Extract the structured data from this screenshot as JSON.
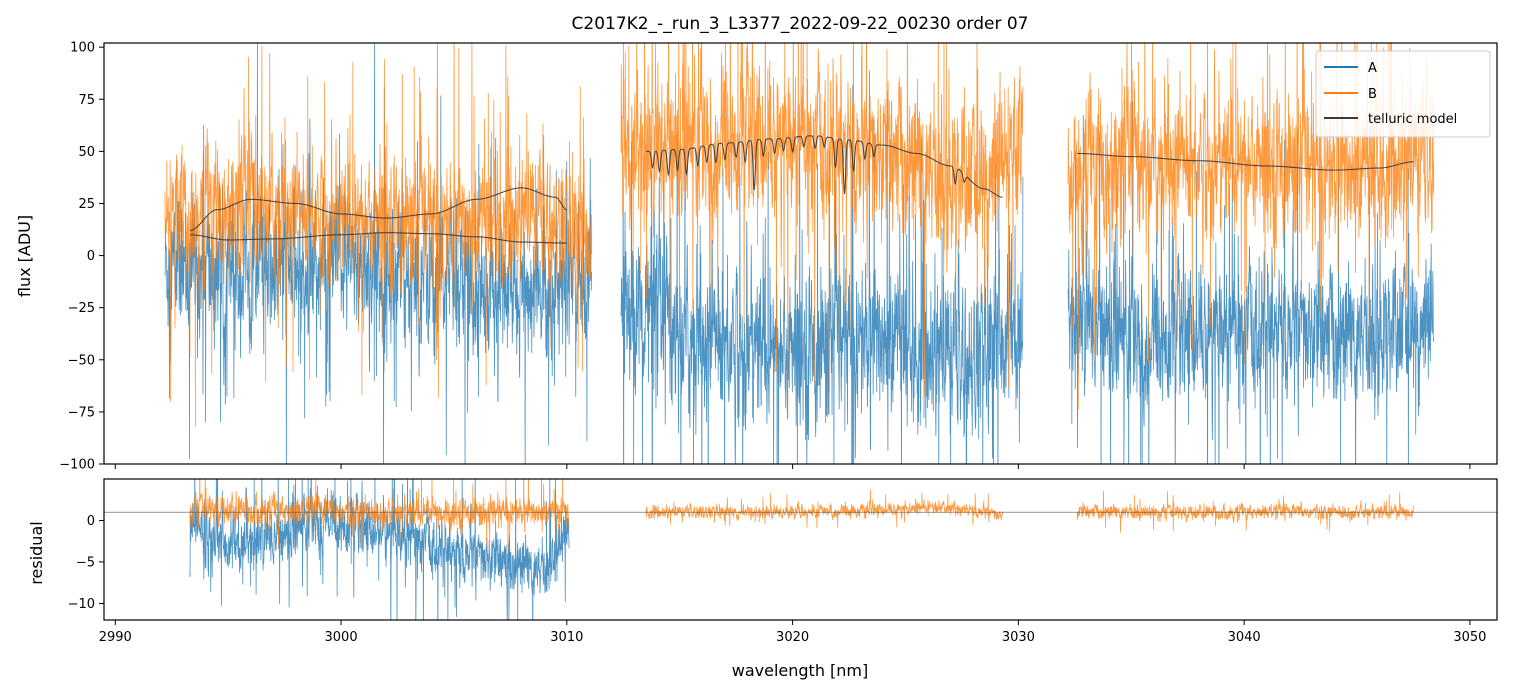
{
  "chart_data": [
    {
      "panel": "main",
      "type": "line",
      "title": "C2017K2_-_run_3_L3377_2022-09-22_00230  order 07",
      "xlabel": "",
      "ylabel": "flux [ADU]",
      "xlim": [
        2989.5,
        3051.2
      ],
      "ylim": [
        -100,
        102
      ],
      "yticks": [
        -100,
        -75,
        -50,
        -25,
        0,
        25,
        50,
        75,
        100
      ],
      "xticks": [
        2990,
        3000,
        3010,
        3020,
        3030,
        3040,
        3050
      ],
      "legend": {
        "placement": "top-right",
        "entries": [
          {
            "label": "A",
            "color": "#1f77b4"
          },
          {
            "label": "B",
            "color": "#ff7f0e"
          },
          {
            "label": "telluric model",
            "color": "#3a3a3a"
          }
        ]
      },
      "series": [
        {
          "name": "A",
          "color": "#1f77b4",
          "segments": [
            {
              "x_range": [
                2992.2,
                3011.1
              ],
              "center": [
                [
                  2992.2,
                  -5
                ],
                [
                  2996,
                  -10
                ],
                [
                  3000,
                  -5
                ],
                [
                  3005,
                  -10
                ],
                [
                  3008,
                  -20
                ],
                [
                  3011.1,
                  -10
                ]
              ],
              "noise": 30
            },
            {
              "x_range": [
                3012.4,
                3030.2
              ],
              "center": [
                [
                  3012.4,
                  -25
                ],
                [
                  3016,
                  -40
                ],
                [
                  3020,
                  -45
                ],
                [
                  3024,
                  -40
                ],
                [
                  3028,
                  -50
                ],
                [
                  3030.2,
                  -35
                ]
              ],
              "noise": 35
            },
            {
              "x_range": [
                3032.2,
                3048.4
              ],
              "center": [
                [
                  3032.2,
                  -30
                ],
                [
                  3036,
                  -40
                ],
                [
                  3040,
                  -35
                ],
                [
                  3044,
                  -40
                ],
                [
                  3048.4,
                  -35
                ]
              ],
              "noise": 30
            }
          ]
        },
        {
          "name": "B",
          "color": "#ff7f0e",
          "segments": [
            {
              "x_range": [
                2992.2,
                3011.1
              ],
              "center": [
                [
                  2992.2,
                  15
                ],
                [
                  2996,
                  25
                ],
                [
                  3000,
                  18
                ],
                [
                  3005,
                  15
                ],
                [
                  3008,
                  20
                ],
                [
                  3011.1,
                  10
                ]
              ],
              "noise": 28
            },
            {
              "x_range": [
                3012.4,
                3030.2
              ],
              "center": [
                [
                  3012.4,
                  50
                ],
                [
                  3016,
                  55
                ],
                [
                  3020,
                  55
                ],
                [
                  3024,
                  45
                ],
                [
                  3028,
                  35
                ],
                [
                  3030.2,
                  45
                ]
              ],
              "noise": 35
            },
            {
              "x_range": [
                3032.2,
                3048.4
              ],
              "center": [
                [
                  3032.2,
                  40
                ],
                [
                  3036,
                  45
                ],
                [
                  3040,
                  45
                ],
                [
                  3044,
                  40
                ],
                [
                  3048.4,
                  45
                ]
              ],
              "noise": 32
            }
          ]
        },
        {
          "name": "telluric model",
          "color": "#3a3a3a",
          "curves": [
            {
              "points": [
                [
                  2993.3,
                  10
                ],
                [
                  2995,
                  7.5
                ],
                [
                  2997,
                  8
                ],
                [
                  3000,
                  10
                ],
                [
                  3002,
                  11
                ],
                [
                  3004,
                  10.5
                ],
                [
                  3006,
                  9
                ],
                [
                  3008,
                  6.5
                ],
                [
                  3010,
                  6
                ]
              ]
            },
            {
              "points": [
                [
                  2993.3,
                  12
                ],
                [
                  2994.5,
                  22
                ],
                [
                  2996,
                  27
                ],
                [
                  2998,
                  25
                ],
                [
                  3000,
                  20
                ],
                [
                  3002,
                  18
                ],
                [
                  3004,
                  20
                ],
                [
                  3006,
                  27
                ],
                [
                  3008,
                  32.5
                ],
                [
                  3009.5,
                  28
                ],
                [
                  3010,
                  22
                ]
              ]
            },
            {
              "points": [
                [
                  3013.5,
                  50
                ],
                [
                  3015,
                  51
                ],
                [
                  3017,
                  54
                ],
                [
                  3019,
                  56
                ],
                [
                  3021,
                  57.5
                ],
                [
                  3022.5,
                  55.5
                ],
                [
                  3024,
                  53
                ],
                [
                  3025.5,
                  49
                ],
                [
                  3027,
                  43
                ],
                [
                  3028.5,
                  32
                ],
                [
                  3029.3,
                  28
                ]
              ],
              "dips": [
                [
                  3013.8,
                  8
                ],
                [
                  3014.1,
                  10
                ],
                [
                  3014.5,
                  12
                ],
                [
                  3014.9,
                  10
                ],
                [
                  3015.3,
                  12
                ],
                [
                  3015.8,
                  9
                ],
                [
                  3016.2,
                  8
                ],
                [
                  3016.6,
                  9
                ],
                [
                  3017.0,
                  8
                ],
                [
                  3017.5,
                  7
                ],
                [
                  3017.9,
                  10
                ],
                [
                  3018.3,
                  24
                ],
                [
                  3018.7,
                  8
                ],
                [
                  3019.2,
                  7
                ],
                [
                  3019.6,
                  6
                ],
                [
                  3020.0,
                  7
                ],
                [
                  3020.5,
                  5
                ],
                [
                  3021.0,
                  6
                ],
                [
                  3021.4,
                  5
                ],
                [
                  3021.9,
                  14
                ],
                [
                  3022.3,
                  26
                ],
                [
                  3022.7,
                  15
                ],
                [
                  3023.2,
                  8
                ],
                [
                  3023.6,
                  6
                ],
                [
                  3027.2,
                  8
                ],
                [
                  3027.6,
                  4
                ]
              ]
            },
            {
              "points": [
                [
                  3032.6,
                  49
                ],
                [
                  3035,
                  47.5
                ],
                [
                  3038,
                  45.5
                ],
                [
                  3041,
                  43
                ],
                [
                  3044,
                  41
                ],
                [
                  3046,
                  42
                ],
                [
                  3047.5,
                  45
                ]
              ]
            }
          ]
        }
      ]
    },
    {
      "panel": "residual",
      "type": "line",
      "xlabel": "wavelength [nm]",
      "ylabel": "residual",
      "xlim": [
        2989.5,
        3051.2
      ],
      "ylim": [
        -12,
        5
      ],
      "yticks": [
        -10,
        -5,
        0
      ],
      "xticks": [
        2990,
        3000,
        3010,
        3020,
        3030,
        3040,
        3050
      ],
      "hline": 1,
      "series": [
        {
          "name": "A",
          "color": "#1f77b4",
          "segments": [
            {
              "x_range": [
                2993.3,
                3010.1
              ],
              "center": [
                [
                  2993.3,
                  0
                ],
                [
                  2995,
                  -3
                ],
                [
                  2997,
                  -2
                ],
                [
                  2999,
                  0
                ],
                [
                  3001,
                  -1
                ],
                [
                  3003,
                  -2
                ],
                [
                  3005,
                  -4
                ],
                [
                  3007,
                  -5
                ],
                [
                  3009,
                  -6
                ],
                [
                  3010.1,
                  -1
                ]
              ],
              "noise": 3.2
            }
          ]
        },
        {
          "name": "B",
          "color": "#ff7f0e",
          "segments": [
            {
              "x_range": [
                2993.3,
                3010.1
              ],
              "center": [
                [
                  2993.3,
                  1.5
                ],
                [
                  3000,
                  1
                ],
                [
                  3005,
                  1
                ],
                [
                  3010.1,
                  1
                ]
              ],
              "noise": 1.6
            },
            {
              "x_range": [
                3013.5,
                3029.3
              ],
              "center": [
                [
                  3013.5,
                  1
                ],
                [
                  3020,
                  1
                ],
                [
                  3027,
                  1.5
                ],
                [
                  3028.5,
                  1
                ],
                [
                  3029.3,
                  0.5
                ]
              ],
              "noise": 0.7
            },
            {
              "x_range": [
                3032.6,
                3047.5
              ],
              "center": [
                [
                  3032.6,
                  1
                ],
                [
                  3040,
                  1
                ],
                [
                  3047.5,
                  1
                ]
              ],
              "noise": 0.8
            }
          ]
        }
      ]
    }
  ]
}
